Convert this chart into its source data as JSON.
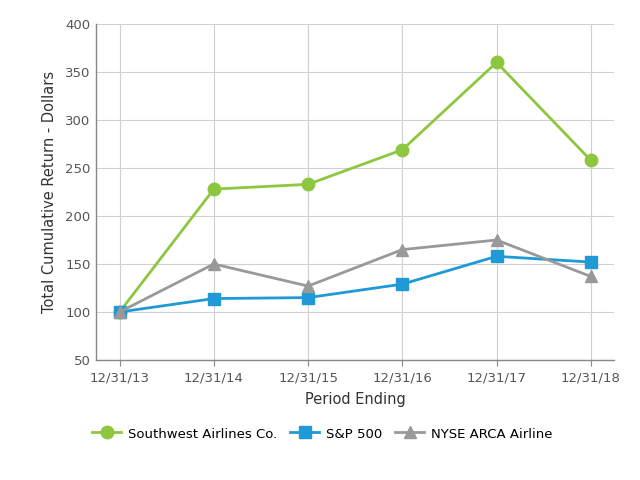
{
  "x_labels": [
    "12/31/13",
    "12/31/14",
    "12/31/15",
    "12/31/16",
    "12/31/17",
    "12/31/18"
  ],
  "southwest": [
    100,
    228,
    233,
    269,
    360,
    258
  ],
  "sp500": [
    100,
    114,
    115,
    129,
    158,
    152
  ],
  "nyse_arca": [
    100,
    150,
    127,
    165,
    175,
    137
  ],
  "southwest_color": "#8dc63f",
  "sp500_color": "#1f9ad6",
  "nyse_arca_color": "#999999",
  "southwest_label": "Southwest Airlines Co.",
  "sp500_label": "S&P 500",
  "nyse_arca_label": "NYSE ARCA Airline",
  "xlabel": "Period Ending",
  "ylabel": "Total Cumulative Return - Dollars",
  "ylim": [
    50,
    400
  ],
  "yticks": [
    50,
    100,
    150,
    200,
    250,
    300,
    350,
    400
  ],
  "background_color": "#ffffff",
  "grid_color": "#d0d0d0",
  "spine_color": "#888888",
  "tick_color": "#555555",
  "label_color": "#333333"
}
